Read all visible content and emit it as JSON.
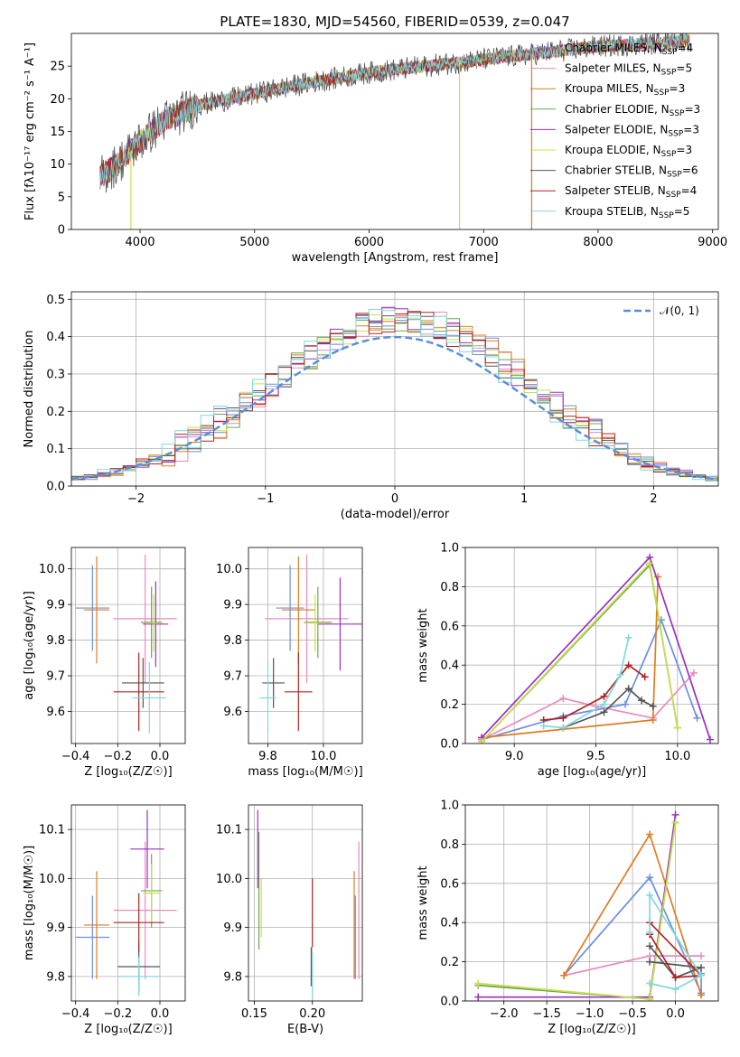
{
  "colors": {
    "Chabrier MILES": "#6a8fe0",
    "Salpeter MILES": "#e88ac0",
    "Kroupa MILES": "#e07b1f",
    "Chabrier ELODIE": "#6aa84f",
    "Salpeter ELODIE": "#9b30c0",
    "Kroupa ELODIE": "#c8e04a",
    "Chabrier STELIB": "#555555",
    "Salpeter STELIB": "#b22222",
    "Kroupa STELIB": "#80d8e0"
  },
  "chart_data": [
    {
      "id": "spectrum",
      "type": "line",
      "title": "PLATE=1830, MJD=54560, FIBERID=0539, z=0.047",
      "xlabel": "wavelength [Angstrom, rest frame]",
      "ylabel": "Flux [fλ10⁻¹⁷ erg cm⁻² s⁻¹ A⁻¹]",
      "xlim": [
        3400,
        9050
      ],
      "ylim": [
        0,
        30
      ],
      "xticks": [
        4000,
        5000,
        6000,
        7000,
        8000,
        9000
      ],
      "yticks": [
        0,
        5,
        10,
        15,
        20,
        25
      ],
      "grid": false,
      "legend_position": "top-right",
      "legend": [
        {
          "label": "Chabrier MILES, N",
          "sub": "SSP",
          "tail": "=4",
          "color": "#6a8fe0"
        },
        {
          "label": "Salpeter MILES, N",
          "sub": "SSP",
          "tail": "=5",
          "color": "#e88ac0"
        },
        {
          "label": "Kroupa MILES, N",
          "sub": "SSP",
          "tail": "=3",
          "color": "#e07b1f"
        },
        {
          "label": "Chabrier ELODIE, N",
          "sub": "SSP",
          "tail": "=3",
          "color": "#6aa84f"
        },
        {
          "label": "Salpeter ELODIE, N",
          "sub": "SSP",
          "tail": "=3",
          "color": "#9b30c0"
        },
        {
          "label": "Kroupa ELODIE, N",
          "sub": "SSP",
          "tail": "=3",
          "color": "#c8e04a"
        },
        {
          "label": "Chabrier STELIB, N",
          "sub": "SSP",
          "tail": "=6",
          "color": "#555555"
        },
        {
          "label": "Salpeter STELIB, N",
          "sub": "SSP",
          "tail": "=4",
          "color": "#b22222"
        },
        {
          "label": "Kroupa STELIB, N",
          "sub": "SSP",
          "tail": "=5",
          "color": "#80d8e0"
        }
      ],
      "continuum": {
        "x": [
          3650,
          3800,
          4000,
          4200,
          4500,
          4800,
          5200,
          5500,
          6000,
          6500,
          7000,
          7500,
          8000,
          8500,
          8800
        ],
        "y": [
          8.0,
          10.0,
          13.5,
          16.5,
          19.0,
          20.0,
          21.5,
          22.5,
          24.0,
          25.0,
          26.0,
          27.0,
          28.0,
          28.5,
          29.0
        ]
      },
      "drops": [
        {
          "x": 3920,
          "color": "#c8e04a"
        },
        {
          "x": 6790,
          "color": "#c8e04a"
        },
        {
          "x": 7420,
          "color": "#e07b1f"
        }
      ]
    },
    {
      "id": "residuals",
      "type": "histogram",
      "xlabel": "(data-model)/error",
      "ylabel": "Normed distribution",
      "xlim": [
        -2.5,
        2.5
      ],
      "ylim": [
        0,
        0.52
      ],
      "xticks": [
        -2,
        -1,
        0,
        1,
        2
      ],
      "yticks": [
        0.0,
        0.1,
        0.2,
        0.3,
        0.4,
        0.5
      ],
      "grid": true,
      "legend_position": "top-right",
      "reference": {
        "label": "𝒩(0, 1)",
        "color": "#5a8fd8"
      }
    },
    {
      "id": "age-vs-Z",
      "type": "errorbar",
      "xlabel": "Z [log₁₀(Z/Z☉)]",
      "ylabel": "age  [log₁₀(age/yr)]",
      "xlim": [
        -0.42,
        0.12
      ],
      "ylim": [
        9.51,
        10.06
      ],
      "xticks": [
        -0.4,
        -0.2,
        0.0
      ],
      "yticks": [
        9.6,
        9.7,
        9.8,
        9.9,
        10.0
      ],
      "grid": true,
      "points": [
        {
          "s": "Chabrier MILES",
          "x": -0.32,
          "y": 9.89,
          "xe": 0.08,
          "ye": 0.12
        },
        {
          "s": "Salpeter MILES",
          "x": -0.07,
          "y": 9.86,
          "xe": 0.15,
          "ye": 0.18
        },
        {
          "s": "Kroupa MILES",
          "x": -0.3,
          "y": 9.885,
          "xe": 0.06,
          "ye": 0.15
        },
        {
          "s": "Chabrier ELODIE",
          "x": -0.04,
          "y": 9.85,
          "xe": 0.05,
          "ye": 0.1
        },
        {
          "s": "Salpeter ELODIE",
          "x": -0.02,
          "y": 9.845,
          "xe": 0.06,
          "ye": 0.12
        },
        {
          "s": "Kroupa ELODIE",
          "x": -0.03,
          "y": 9.848,
          "xe": 0.04,
          "ye": 0.08
        },
        {
          "s": "Chabrier STELIB",
          "x": -0.08,
          "y": 9.68,
          "xe": 0.1,
          "ye": 0.07
        },
        {
          "s": "Salpeter STELIB",
          "x": -0.1,
          "y": 9.655,
          "xe": 0.12,
          "ye": 0.11
        },
        {
          "s": "Kroupa STELIB",
          "x": -0.05,
          "y": 9.638,
          "xe": 0.08,
          "ye": 0.1
        }
      ]
    },
    {
      "id": "age-vs-mass",
      "type": "errorbar",
      "xlabel": "mass [log₁₀(M/M☉)]",
      "ylabel": "",
      "xlim": [
        9.73,
        10.14
      ],
      "ylim": [
        9.51,
        10.06
      ],
      "xticks": [
        9.8,
        10.0
      ],
      "yticks": [
        9.6,
        9.7,
        9.8,
        9.9,
        10.0
      ],
      "grid": true,
      "points": [
        {
          "s": "Chabrier MILES",
          "x": 9.88,
          "y": 9.89,
          "xe": 0.05,
          "ye": 0.12
        },
        {
          "s": "Salpeter MILES",
          "x": 9.94,
          "y": 9.86,
          "xe": 0.15,
          "ye": 0.18
        },
        {
          "s": "Kroupa MILES",
          "x": 9.91,
          "y": 9.885,
          "xe": 0.06,
          "ye": 0.15
        },
        {
          "s": "Chabrier ELODIE",
          "x": 9.98,
          "y": 9.85,
          "xe": 0.05,
          "ye": 0.1
        },
        {
          "s": "Salpeter ELODIE",
          "x": 10.06,
          "y": 9.845,
          "xe": 0.08,
          "ye": 0.13
        },
        {
          "s": "Kroupa ELODIE",
          "x": 9.97,
          "y": 9.848,
          "xe": 0.04,
          "ye": 0.08
        },
        {
          "s": "Chabrier STELIB",
          "x": 9.82,
          "y": 9.68,
          "xe": 0.04,
          "ye": 0.07
        },
        {
          "s": "Salpeter STELIB",
          "x": 9.91,
          "y": 9.655,
          "xe": 0.05,
          "ye": 0.11
        },
        {
          "s": "Kroupa STELIB",
          "x": 9.8,
          "y": 9.638,
          "xe": 0.03,
          "ye": 0.1
        }
      ]
    },
    {
      "id": "massweight-vs-age",
      "type": "line",
      "xlabel": "age  [log₁₀(age/yr)]",
      "ylabel": "mass weight",
      "xlim": [
        8.7,
        10.25
      ],
      "ylim": [
        0,
        1.0
      ],
      "xticks": [
        9.0,
        9.5,
        10.0
      ],
      "yticks": [
        0.0,
        0.2,
        0.4,
        0.6,
        0.8,
        1.0
      ],
      "grid": true,
      "series": [
        {
          "s": "Chabrier MILES",
          "x": [
            8.8,
            9.3,
            9.68,
            9.9,
            10.12
          ],
          "y": [
            0.02,
            0.14,
            0.2,
            0.63,
            0.13
          ]
        },
        {
          "s": "Salpeter MILES",
          "x": [
            8.8,
            9.3,
            9.5,
            9.85,
            10.1
          ],
          "y": [
            0.02,
            0.23,
            0.19,
            0.13,
            0.36
          ]
        },
        {
          "s": "Kroupa MILES",
          "x": [
            8.8,
            9.85,
            9.88
          ],
          "y": [
            0.03,
            0.12,
            0.85
          ]
        },
        {
          "s": "Chabrier ELODIE",
          "x": [
            8.8,
            9.83,
            10.0
          ],
          "y": [
            0.01,
            0.91,
            0.08
          ]
        },
        {
          "s": "Salpeter ELODIE",
          "x": [
            8.8,
            9.83,
            10.2
          ],
          "y": [
            0.03,
            0.95,
            0.02
          ]
        },
        {
          "s": "Kroupa ELODIE",
          "x": [
            8.8,
            9.83,
            10.0
          ],
          "y": [
            0.01,
            0.92,
            0.08
          ]
        },
        {
          "s": "Chabrier STELIB",
          "x": [
            9.3,
            9.55,
            9.7,
            9.78,
            9.85
          ],
          "y": [
            0.08,
            0.16,
            0.28,
            0.22,
            0.19
          ]
        },
        {
          "s": "Salpeter STELIB",
          "x": [
            9.18,
            9.3,
            9.55,
            9.7,
            9.8
          ],
          "y": [
            0.12,
            0.13,
            0.24,
            0.4,
            0.34
          ]
        },
        {
          "s": "Kroupa STELIB",
          "x": [
            9.18,
            9.3,
            9.55,
            9.65,
            9.7
          ],
          "y": [
            0.09,
            0.08,
            0.2,
            0.35,
            0.54
          ]
        }
      ]
    },
    {
      "id": "mass-vs-Z",
      "type": "errorbar",
      "xlabel": "Z [log₁₀(Z/Z☉)]",
      "ylabel": "mass [log₁₀(M/M☉)]",
      "xlim": [
        -0.42,
        0.12
      ],
      "ylim": [
        9.75,
        10.15
      ],
      "xticks": [
        -0.4,
        -0.2,
        0.0
      ],
      "yticks": [
        9.8,
        9.9,
        10.0,
        10.1
      ],
      "grid": true,
      "points": [
        {
          "s": "Chabrier MILES",
          "x": -0.32,
          "y": 9.88,
          "xe": 0.08,
          "ye": 0.085
        },
        {
          "s": "Salpeter MILES",
          "x": -0.07,
          "y": 9.935,
          "xe": 0.15,
          "ye": 0.14
        },
        {
          "s": "Kroupa MILES",
          "x": -0.3,
          "y": 9.905,
          "xe": 0.06,
          "ye": 0.11
        },
        {
          "s": "Chabrier ELODIE",
          "x": -0.04,
          "y": 9.975,
          "xe": 0.05,
          "ye": 0.075
        },
        {
          "s": "Salpeter ELODIE",
          "x": -0.06,
          "y": 10.06,
          "xe": 0.08,
          "ye": 0.08
        },
        {
          "s": "Kroupa ELODIE",
          "x": -0.04,
          "y": 9.97,
          "xe": 0.04,
          "ye": 0.06
        },
        {
          "s": "Chabrier STELIB",
          "x": -0.1,
          "y": 9.82,
          "xe": 0.1,
          "ye": 0.05
        },
        {
          "s": "Salpeter STELIB",
          "x": -0.1,
          "y": 9.91,
          "xe": 0.12,
          "ye": 0.06
        },
        {
          "s": "Kroupa STELIB",
          "x": -0.1,
          "y": 9.8,
          "xe": 0.1,
          "ye": 0.04
        }
      ]
    },
    {
      "id": "mass-vs-EBV",
      "type": "errorbar",
      "xlabel": "E(B-V)",
      "ylabel": "",
      "xlim": [
        0.145,
        0.243
      ],
      "ylim": [
        9.75,
        10.15
      ],
      "xticks": [
        0.15,
        0.2
      ],
      "yticks": [
        9.8,
        9.9,
        10.0,
        10.1
      ],
      "grid": true,
      "points": [
        {
          "s": "Chabrier MILES",
          "x": 0.237,
          "y": 9.88,
          "xe": 0.0,
          "ye": 0.085
        },
        {
          "s": "Salpeter MILES",
          "x": 0.24,
          "y": 9.935,
          "xe": 0.0,
          "ye": 0.14
        },
        {
          "s": "Kroupa MILES",
          "x": 0.236,
          "y": 9.905,
          "xe": 0.0,
          "ye": 0.11
        },
        {
          "s": "Chabrier ELODIE",
          "x": 0.154,
          "y": 9.975,
          "xe": 0.0,
          "ye": 0.12
        },
        {
          "s": "Salpeter ELODIE",
          "x": 0.153,
          "y": 10.06,
          "xe": 0.0,
          "ye": 0.08
        },
        {
          "s": "Kroupa ELODIE",
          "x": 0.156,
          "y": 9.94,
          "xe": 0.0,
          "ye": 0.06
        },
        {
          "s": "Chabrier STELIB",
          "x": 0.199,
          "y": 9.82,
          "xe": 0.0,
          "ye": 0.04
        },
        {
          "s": "Salpeter STELIB",
          "x": 0.2,
          "y": 9.93,
          "xe": 0.0,
          "ye": 0.07
        },
        {
          "s": "Kroupa STELIB",
          "x": 0.2,
          "y": 9.8,
          "xe": 0.0,
          "ye": 0.05
        }
      ]
    },
    {
      "id": "massweight-vs-Z",
      "type": "line",
      "xlabel": "Z [log₁₀(Z/Z☉)]",
      "ylabel": "mass weight",
      "xlim": [
        -2.45,
        0.5
      ],
      "ylim": [
        0,
        1.0
      ],
      "xticks": [
        -2.0,
        -1.5,
        -1.0,
        -0.5,
        0.0
      ],
      "yticks": [
        0.0,
        0.2,
        0.4,
        0.6,
        0.8,
        1.0
      ],
      "grid": true,
      "series": [
        {
          "s": "Chabrier MILES",
          "x": [
            -1.3,
            -0.3,
            0.3,
            0.3
          ],
          "y": [
            0.13,
            0.63,
            0.04,
            0.14
          ]
        },
        {
          "s": "Salpeter MILES",
          "x": [
            -1.3,
            -0.3,
            0.3
          ],
          "y": [
            0.13,
            0.23,
            0.23
          ]
        },
        {
          "s": "Kroupa MILES",
          "x": [
            -1.3,
            -0.3,
            0.3
          ],
          "y": [
            0.13,
            0.85,
            0.03
          ]
        },
        {
          "s": "Chabrier ELODIE",
          "x": [
            -2.3,
            -0.3,
            0.0
          ],
          "y": [
            0.08,
            0.01,
            0.91
          ]
        },
        {
          "s": "Salpeter ELODIE",
          "x": [
            -2.3,
            -0.3,
            0.0
          ],
          "y": [
            0.02,
            0.02,
            0.95
          ]
        },
        {
          "s": "Kroupa ELODIE",
          "x": [
            -2.3,
            -0.3,
            0.0
          ],
          "y": [
            0.09,
            0.01,
            0.91
          ]
        },
        {
          "s": "Chabrier STELIB",
          "x": [
            -0.3,
            0.3,
            0.0,
            -0.3
          ],
          "y": [
            0.2,
            0.17,
            0.12,
            0.28
          ]
        },
        {
          "s": "Salpeter STELIB",
          "x": [
            -0.3,
            0.0,
            0.3,
            -0.3
          ],
          "y": [
            0.34,
            0.12,
            0.13,
            0.4
          ]
        },
        {
          "s": "Kroupa STELIB",
          "x": [
            -0.3,
            0.0,
            0.3,
            -0.3,
            -0.3
          ],
          "y": [
            0.09,
            0.06,
            0.13,
            0.54,
            0.35
          ]
        }
      ]
    }
  ]
}
